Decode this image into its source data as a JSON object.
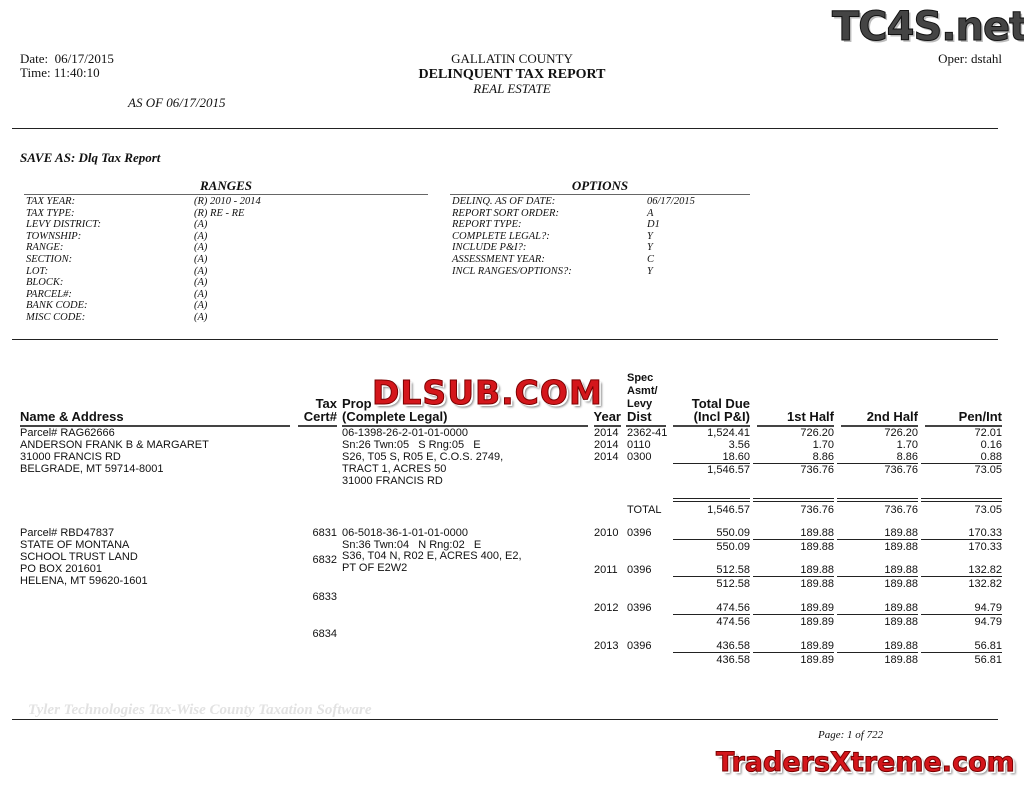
{
  "header": {
    "date_label": "Date:  06/17/2015",
    "time_label": "Time: 11:40:10",
    "county": "GALLATIN COUNTY",
    "title": "DELINQUENT TAX REPORT",
    "subtitle": "REAL ESTATE",
    "operator": "Oper: dstahl",
    "as_of": "AS OF 06/17/2015"
  },
  "save_as": "SAVE AS: Dlq Tax Report",
  "ranges": {
    "title": "RANGES",
    "items": [
      {
        "label": "TAX YEAR:",
        "value": "(R) 2010 - 2014"
      },
      {
        "label": "TAX TYPE:",
        "value": "(R) RE - RE"
      },
      {
        "label": "LEVY DISTRICT:",
        "value": "(A)"
      },
      {
        "label": "TOWNSHIP:",
        "value": "(A)"
      },
      {
        "label": "RANGE:",
        "value": "(A)"
      },
      {
        "label": "SECTION:",
        "value": "(A)"
      },
      {
        "label": "LOT:",
        "value": "(A)"
      },
      {
        "label": "BLOCK:",
        "value": "(A)"
      },
      {
        "label": "PARCEL#:",
        "value": "(A)"
      },
      {
        "label": "BANK CODE:",
        "value": "(A)"
      },
      {
        "label": "MISC CODE:",
        "value": "(A)"
      }
    ]
  },
  "options": {
    "title": "OPTIONS",
    "items": [
      {
        "label": "DELINQ. AS OF DATE:",
        "value": "06/17/2015"
      },
      {
        "label": "REPORT SORT ORDER:",
        "value": "A"
      },
      {
        "label": "REPORT TYPE:",
        "value": "D1"
      },
      {
        "label": "COMPLETE LEGAL?:",
        "value": "Y"
      },
      {
        "label": "INCLUDE P&I?:",
        "value": "Y"
      },
      {
        "label": "ASSESSMENT YEAR:",
        "value": "C"
      },
      {
        "label": "INCL RANGES/OPTIONS?:",
        "value": "Y"
      }
    ]
  },
  "columns": {
    "name": "Name & Address",
    "cert_1": "Tax",
    "cert_2": "Cert#",
    "prop_1": "Prop",
    "prop_2": "(Complete Legal)",
    "year": "Year",
    "dist_1": "Spec",
    "dist_2": "Asmt/",
    "dist_3": "Levy",
    "dist_4": "Dist",
    "total_1": "Total Due",
    "total_2": "(Incl P&I)",
    "first": "1st Half",
    "second": "2nd Half",
    "pen": "Pen/Int"
  },
  "records": [
    {
      "address": [
        "Parcel# RAG62666",
        "ANDERSON FRANK B & MARGARET",
        "31000 FRANCIS RD",
        "BELGRADE, MT 59714-8001"
      ],
      "legal": [
        "06-1398-26-2-01-01-0000",
        "Sn:26 Twn:05   S Rng:05   E",
        "S26, T05 S, R05 E, C.O.S. 2749,",
        "TRACT 1, ACRES 50",
        "31000 FRANCIS RD"
      ],
      "certs": [],
      "lines": [
        {
          "year": "2014",
          "dist": "2362-41",
          "total": "1,524.41",
          "first": "726.20",
          "second": "726.20",
          "pen": "72.01"
        },
        {
          "year": "2014",
          "dist": "0110",
          "total": "3.56",
          "first": "1.70",
          "second": "1.70",
          "pen": "0.16"
        },
        {
          "year": "2014",
          "dist": "0300",
          "total": "18.60",
          "first": "8.86",
          "second": "8.86",
          "pen": "0.88"
        }
      ],
      "subtotals": [
        {
          "total": "1,546.57",
          "first": "736.76",
          "second": "736.76",
          "pen": "73.05"
        }
      ],
      "grand": {
        "label": "TOTAL",
        "total": "1,546.57",
        "first": "736.76",
        "second": "736.76",
        "pen": "73.05"
      }
    },
    {
      "address": [
        "Parcel# RBD47837",
        "STATE OF MONTANA",
        "SCHOOL TRUST LAND",
        "PO BOX 201601",
        "HELENA, MT 59620-1601"
      ],
      "legal": [
        "06-5018-36-1-01-01-0000",
        "Sn:36 Twn:04   N Rng:02   E",
        "S36, T04 N, R02 E, ACRES 400, E2,",
        "PT OF E2W2"
      ],
      "certs": [
        "6831",
        "6832",
        "6833",
        "6834"
      ],
      "lines": [
        {
          "year": "2010",
          "dist": "0396",
          "total": "550.09",
          "first": "189.88",
          "second": "189.88",
          "pen": "170.33"
        },
        {
          "year": "2011",
          "dist": "0396",
          "total": "512.58",
          "first": "189.88",
          "second": "189.88",
          "pen": "132.82"
        },
        {
          "year": "2012",
          "dist": "0396",
          "total": "474.56",
          "first": "189.89",
          "second": "189.88",
          "pen": "94.79"
        },
        {
          "year": "2013",
          "dist": "0396",
          "total": "436.58",
          "first": "189.89",
          "second": "189.88",
          "pen": "56.81"
        }
      ],
      "subtotals": [
        {
          "total": "550.09",
          "first": "189.88",
          "second": "189.88",
          "pen": "170.33"
        },
        {
          "total": "512.58",
          "first": "189.88",
          "second": "189.88",
          "pen": "132.82"
        },
        {
          "total": "474.56",
          "first": "189.89",
          "second": "189.88",
          "pen": "94.79"
        },
        {
          "total": "436.58",
          "first": "189.89",
          "second": "189.88",
          "pen": "56.81"
        }
      ]
    }
  ],
  "footer": {
    "software": "Tyler Technologies Tax-Wise County Taxation Software",
    "page": "Page: 1 of 722"
  },
  "watermarks": {
    "top": "TC4S.net",
    "middle": "DLSUB.COM",
    "bottom": "TradersXtreme.com",
    "color": "#d4161b"
  }
}
